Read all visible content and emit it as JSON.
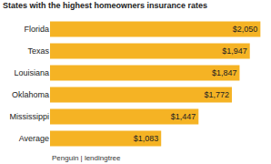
{
  "chart_data": {
    "type": "bar",
    "title": "States with the highest homeowners insurance rates",
    "orientation": "horizontal",
    "categories": [
      "Florida",
      "Texas",
      "Louisiana",
      "Oklahoma",
      "Mississippi",
      "Average"
    ],
    "values": [
      2050,
      1947,
      1847,
      1772,
      1447,
      1083
    ],
    "value_labels": [
      "$2,050",
      "$1,947",
      "$1,847",
      "$1,772",
      "$1,447",
      "$1,083"
    ],
    "color": "#f5b324",
    "xlim": [
      0,
      2100
    ],
    "data_labels": true,
    "tick_labels": "y",
    "grid": false,
    "source": "Penguin | lendingtree"
  }
}
